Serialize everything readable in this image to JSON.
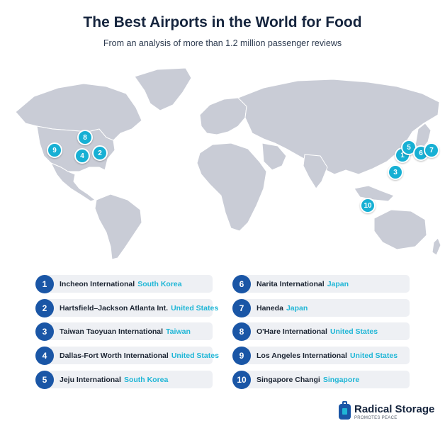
{
  "title": "The Best Airports in the World for Food",
  "subtitle": "From an analysis of more than 1.2 million passenger reviews",
  "colors": {
    "land": "#c9ccd6",
    "accent": "#1fb6d6",
    "badge": "#1a56a6",
    "title": "#15243d"
  },
  "pins": [
    "1",
    "2",
    "3",
    "4",
    "5",
    "6",
    "7",
    "8",
    "9",
    "10"
  ],
  "airports": [
    {
      "rank": "1",
      "name": "Incheon International",
      "country": "South Korea"
    },
    {
      "rank": "2",
      "name": "Hartsfield–Jackson Atlanta Int.",
      "country": "United States"
    },
    {
      "rank": "3",
      "name": "Taiwan Taoyuan International",
      "country": "Taiwan"
    },
    {
      "rank": "4",
      "name": "Dallas-Fort Worth International",
      "country": "United States"
    },
    {
      "rank": "5",
      "name": "Jeju International",
      "country": "South Korea"
    },
    {
      "rank": "6",
      "name": "Narita International",
      "country": "Japan"
    },
    {
      "rank": "7",
      "name": "Haneda",
      "country": "Japan"
    },
    {
      "rank": "8",
      "name": "O'Hare International",
      "country": "United States"
    },
    {
      "rank": "9",
      "name": "Los Angeles International",
      "country": "United States"
    },
    {
      "rank": "10",
      "name": "Singapore Changi",
      "country": "Singapore"
    }
  ],
  "logo": {
    "name": "Radical Storage",
    "tagline": "PROMOTES PEACE"
  }
}
